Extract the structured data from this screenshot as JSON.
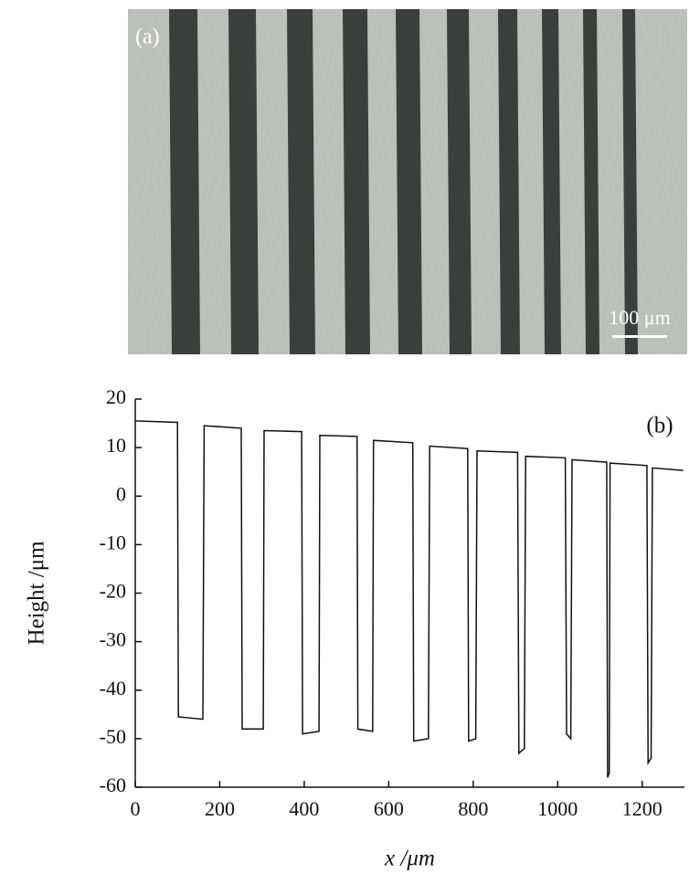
{
  "micrograph": {
    "label": "(a)",
    "scale_bar": "100 μm"
  },
  "chart_data": {
    "type": "line",
    "annotation": "(b)",
    "x_label": "x /μm",
    "y_label": "Height /μm",
    "x": [
      0,
      100,
      102,
      160,
      163,
      251,
      253,
      303,
      305,
      394,
      396,
      435,
      437,
      525,
      527,
      562,
      564,
      657,
      659,
      694,
      697,
      787,
      789,
      806,
      809,
      905,
      908,
      921,
      924,
      1018,
      1021,
      1031,
      1034,
      1116,
      1118,
      1122,
      1124,
      1211,
      1214,
      1221,
      1224,
      1297
    ],
    "values": [
      15.5,
      15.2,
      -45.5,
      -46,
      14.5,
      14.0,
      -48,
      -48,
      13.5,
      13.3,
      -49,
      -48.5,
      12.5,
      12.3,
      -48,
      -48.5,
      11.5,
      11.0,
      -50.5,
      -50,
      10.3,
      9.8,
      -50.5,
      -50,
      9.3,
      9.0,
      -53,
      -52,
      8.2,
      7.9,
      -49,
      -50,
      7.5,
      7.0,
      -58,
      -57,
      6.8,
      6.3,
      -55,
      -54,
      5.8,
      5.3
    ],
    "color": "#111111",
    "xlim": [
      0,
      1300
    ],
    "xticks": [
      0,
      200,
      400,
      600,
      800,
      1000,
      1200
    ],
    "ylim": [
      -60,
      20
    ],
    "yticks": [
      -60,
      -50,
      -40,
      -30,
      -20,
      -10,
      0,
      10,
      20
    ]
  }
}
